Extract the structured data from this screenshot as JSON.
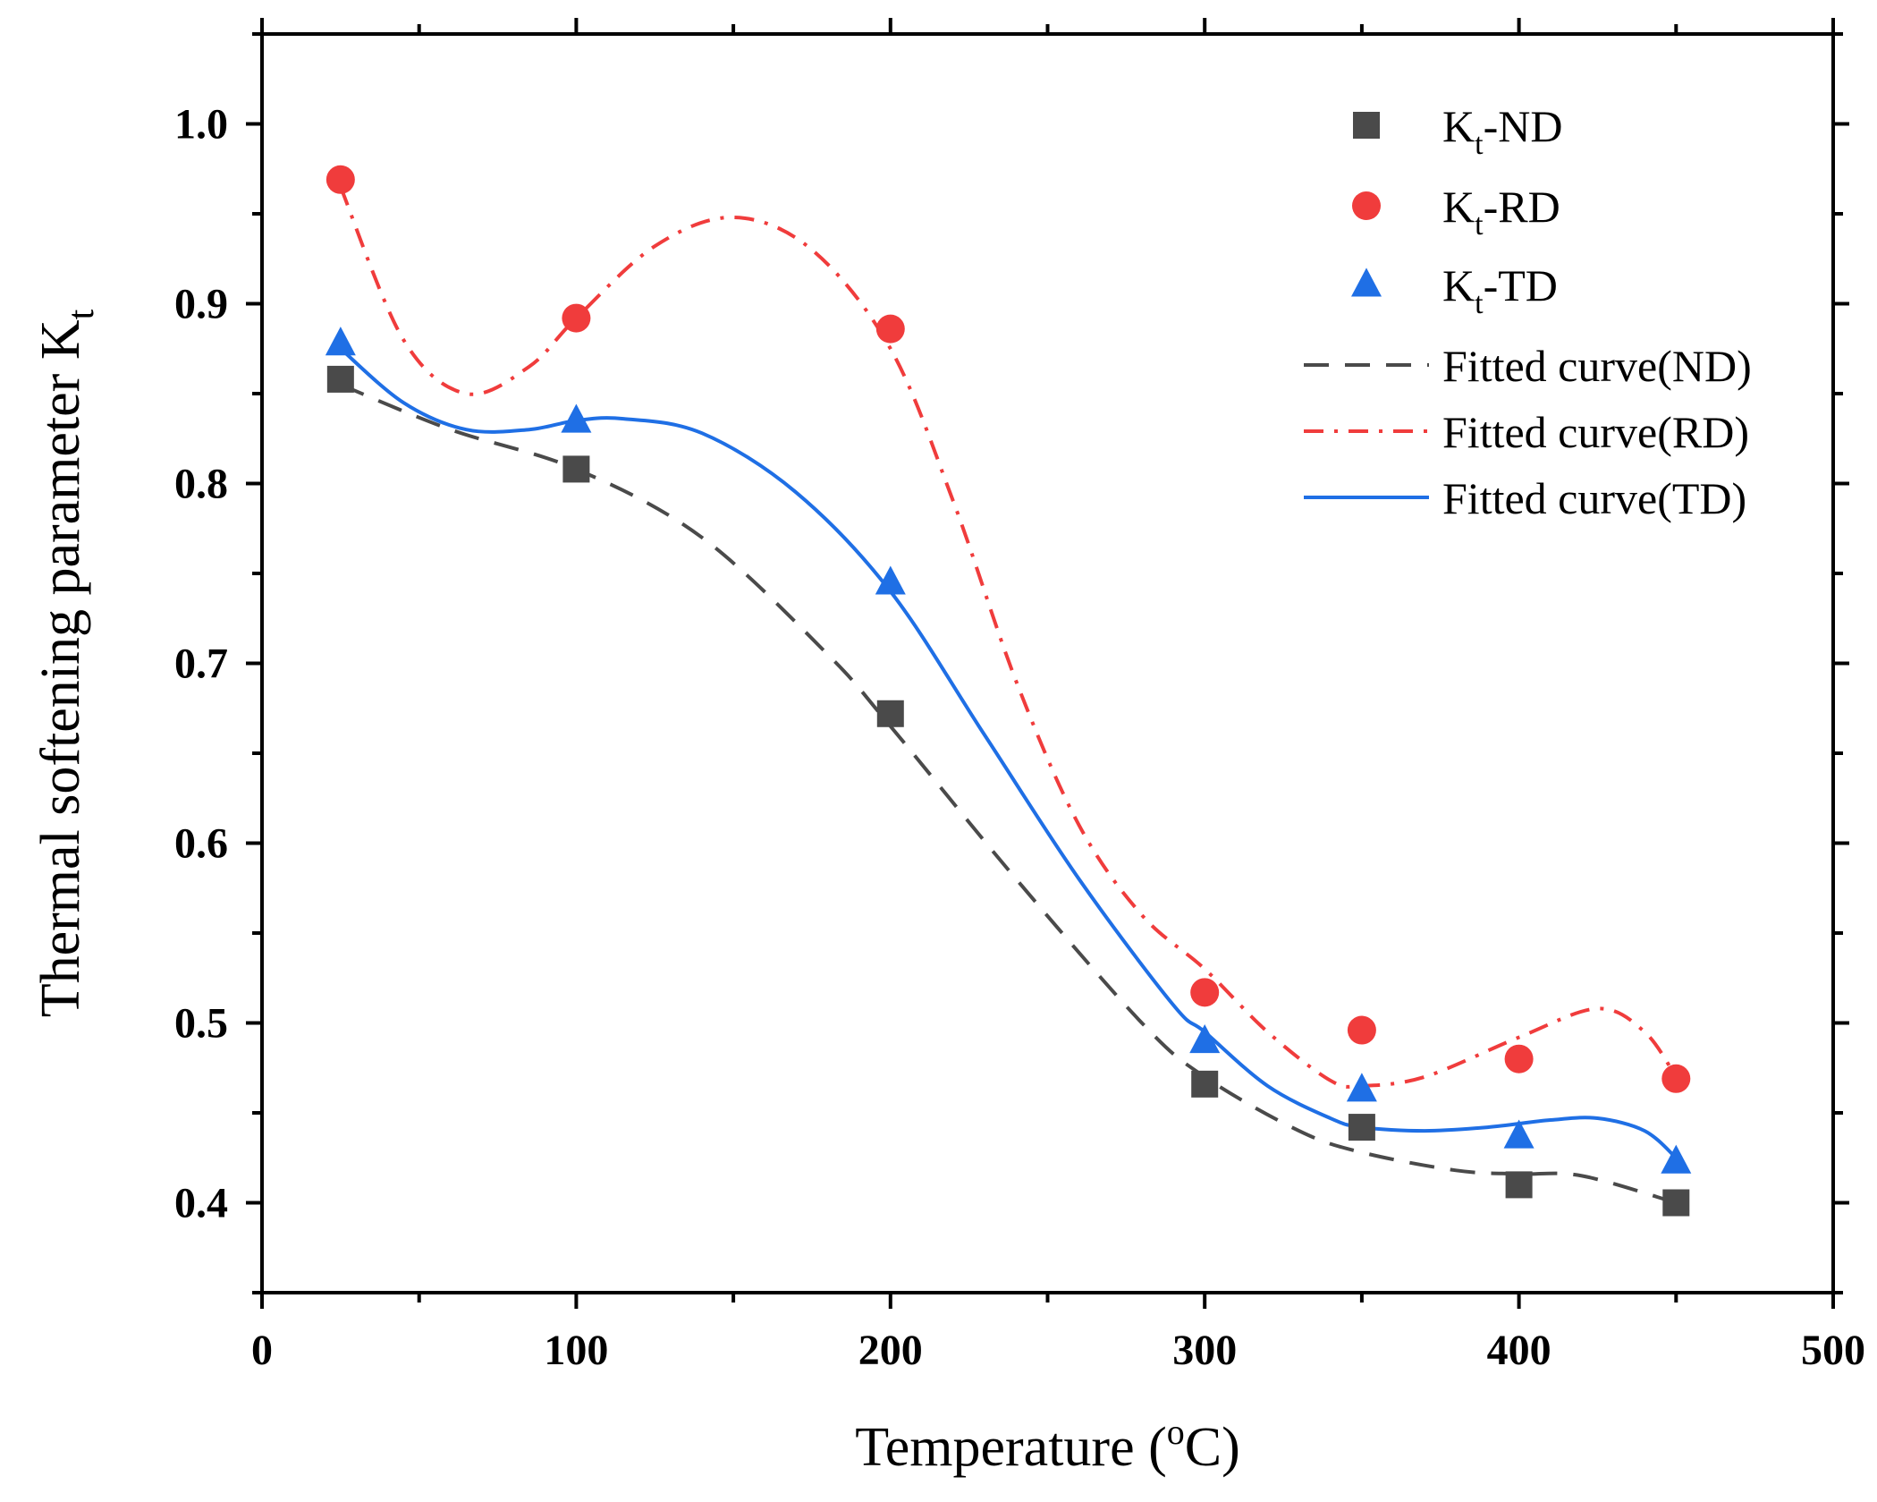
{
  "chart_data": {
    "type": "scatter",
    "title": "",
    "xlabel": {
      "text": "Temperature (",
      "sup": "o",
      "suffix": "C)"
    },
    "ylabel": {
      "text": "Thermal softening parameter K",
      "sub": "t"
    },
    "xlim": [
      0,
      500
    ],
    "ylim": [
      0.35,
      1.05
    ],
    "x_ticks": [
      0,
      100,
      200,
      300,
      400,
      500
    ],
    "x_tick_labels": [
      "0",
      "100",
      "200",
      "300",
      "400",
      "500"
    ],
    "y_ticks": [
      0.4,
      0.5,
      0.6,
      0.7,
      0.8,
      0.9,
      1.0
    ],
    "y_tick_labels": [
      "0.4",
      "0.5",
      "0.6",
      "0.7",
      "0.8",
      "0.9",
      "1.0"
    ],
    "x": [
      25,
      100,
      200,
      300,
      350,
      400,
      450
    ],
    "series": [
      {
        "key": "nd",
        "name": {
          "main": "K",
          "sub": "t",
          "suffix": "-ND"
        },
        "marker": "square",
        "color": "#4a4a4a",
        "values": [
          0.858,
          0.808,
          0.672,
          0.466,
          0.442,
          0.41,
          0.4
        ]
      },
      {
        "key": "rd",
        "name": {
          "main": "K",
          "sub": "t",
          "suffix": "-RD"
        },
        "marker": "circle",
        "color": "#f03c3c",
        "values": [
          0.969,
          0.892,
          0.886,
          0.517,
          0.496,
          0.48,
          0.469
        ]
      },
      {
        "key": "td",
        "name": {
          "main": "K",
          "sub": "t",
          "suffix": "-TD"
        },
        "marker": "triangle",
        "color": "#1f6fe5",
        "values": [
          0.878,
          0.835,
          0.745,
          0.49,
          0.463,
          0.437,
          0.423
        ]
      }
    ],
    "fitted_curves": [
      {
        "key": "fit-nd",
        "name": "Fitted curve(ND)",
        "style": "dash",
        "color": "#4a4a4a",
        "x": [
          25,
          60,
          100,
          140,
          180,
          200,
          240,
          280,
          300,
          330,
          350,
          380,
          400,
          420,
          450
        ],
        "y": [
          0.855,
          0.83,
          0.808,
          0.77,
          0.705,
          0.665,
          0.58,
          0.5,
          0.47,
          0.44,
          0.428,
          0.418,
          0.416,
          0.415,
          0.4
        ]
      },
      {
        "key": "fit-rd",
        "name": "Fitted curve(RD)",
        "style": "dashdot",
        "color": "#f03c3c",
        "x": [
          25,
          45,
          65,
          85,
          100,
          125,
          150,
          175,
          200,
          220,
          240,
          260,
          280,
          300,
          320,
          340,
          350,
          370,
          400,
          425,
          440,
          450
        ],
        "y": [
          0.965,
          0.88,
          0.85,
          0.865,
          0.892,
          0.932,
          0.948,
          0.93,
          0.875,
          0.79,
          0.69,
          0.61,
          0.56,
          0.53,
          0.495,
          0.468,
          0.465,
          0.47,
          0.492,
          0.508,
          0.495,
          0.47
        ]
      },
      {
        "key": "fit-td",
        "name": "Fitted curve(TD)",
        "style": "solid",
        "color": "#1f6fe5",
        "x": [
          25,
          45,
          65,
          85,
          100,
          115,
          140,
          170,
          200,
          230,
          260,
          290,
          300,
          320,
          340,
          350,
          370,
          390,
          410,
          425,
          440,
          450
        ],
        "y": [
          0.875,
          0.845,
          0.83,
          0.83,
          0.835,
          0.836,
          0.828,
          0.795,
          0.74,
          0.66,
          0.58,
          0.51,
          0.495,
          0.465,
          0.447,
          0.442,
          0.44,
          0.442,
          0.446,
          0.447,
          0.44,
          0.425
        ]
      }
    ],
    "legend": {
      "position": "top-right"
    }
  }
}
